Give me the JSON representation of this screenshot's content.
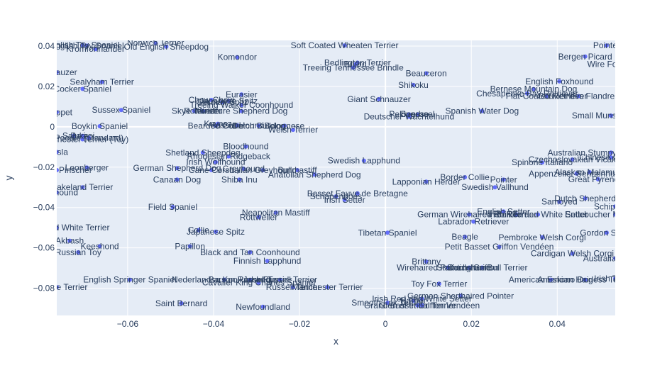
{
  "chart_data": {
    "type": "scatter",
    "title": "",
    "xlabel": "x",
    "ylabel": "y",
    "xlim": [
      -0.0765,
      0.0535
    ],
    "ylim": [
      -0.0935,
      0.0428
    ],
    "x_ticks": [
      -0.06,
      -0.04,
      -0.02,
      0,
      0.02,
      0.04
    ],
    "x_tick_labels": [
      "−0.06",
      "−0.04",
      "−0.02",
      "0",
      "0.02",
      "0.04"
    ],
    "y_ticks": [
      -0.08,
      -0.06,
      -0.04,
      -0.02,
      0,
      0.02,
      0.04
    ],
    "y_tick_labels": [
      "−0.08",
      "−0.06",
      "−0.04",
      "−0.02",
      "0",
      "0.02",
      "0.04"
    ],
    "grid": true,
    "marker_color": "#636efa",
    "plot_background": "#e5ecf6",
    "points": [
      {
        "x": -0.0705,
        "y": 0.0405,
        "label": "English Toy Spaniel"
      },
      {
        "x": -0.0695,
        "y": 0.0402,
        "label": "English Toy Spaniel"
      },
      {
        "x": -0.0535,
        "y": 0.0415,
        "label": "Norwich Terrier"
      },
      {
        "x": -0.051,
        "y": 0.0397,
        "label": "Old English Sheepdog"
      },
      {
        "x": -0.0675,
        "y": 0.0385,
        "label": "Kromfohrlander"
      },
      {
        "x": -0.0345,
        "y": 0.0345,
        "label": "Komondor"
      },
      {
        "x": -0.0095,
        "y": 0.0403,
        "label": "Soft Coated Wheaten Terrier"
      },
      {
        "x": 0.0515,
        "y": 0.0403,
        "label": "Pointer"
      },
      {
        "x": -0.0065,
        "y": 0.0318,
        "label": "Bedlington Terrier"
      },
      {
        "x": -0.007,
        "y": 0.031,
        "label": "Briard"
      },
      {
        "x": -0.0075,
        "y": 0.0293,
        "label": "Treeing Tennessee Brindle"
      },
      {
        "x": 0.0095,
        "y": 0.0265,
        "label": "Beauceron"
      },
      {
        "x": 0.0465,
        "y": 0.0348,
        "label": "Bergen Picard"
      },
      {
        "x": 0.054,
        "y": 0.031,
        "label": "Wire Fox Terrier"
      },
      {
        "x": -0.0765,
        "y": 0.027,
        "label": "Schnauzer"
      },
      {
        "x": -0.066,
        "y": 0.0222,
        "label": "Sealyham Terrier"
      },
      {
        "x": -0.0705,
        "y": 0.0188,
        "label": "Cocker Spaniel"
      },
      {
        "x": 0.0065,
        "y": 0.0207,
        "label": "Shikoku"
      },
      {
        "x": 0.0405,
        "y": 0.0225,
        "label": "English Foxhound"
      },
      {
        "x": 0.0345,
        "y": 0.0187,
        "label": "Bernese Mountain Dog"
      },
      {
        "x": 0.033,
        "y": 0.0165,
        "label": "Chesapeake Bay Retriever"
      },
      {
        "x": 0.0375,
        "y": 0.0152,
        "label": "Flat-Coated Retriever"
      },
      {
        "x": 0.045,
        "y": 0.0152,
        "label": "Bouvier des Flandres"
      },
      {
        "x": -0.0335,
        "y": 0.016,
        "label": "Eurasier"
      },
      {
        "x": -0.0405,
        "y": 0.0133,
        "label": "Chow Chow"
      },
      {
        "x": -0.0365,
        "y": 0.0128,
        "label": "Japanese Spitz"
      },
      {
        "x": -0.038,
        "y": 0.0122,
        "label": "German Spitz"
      },
      {
        "x": -0.0335,
        "y": 0.0108,
        "label": "Treeing Walker Coonhound"
      },
      {
        "x": -0.0015,
        "y": 0.0137,
        "label": "Giant Schnauzer"
      },
      {
        "x": -0.0765,
        "y": 0.0072,
        "label": "Whippet"
      },
      {
        "x": -0.0615,
        "y": 0.0083,
        "label": "Sussex Spaniel"
      },
      {
        "x": -0.0445,
        "y": 0.0078,
        "label": "Skye Terrier"
      },
      {
        "x": -0.0425,
        "y": 0.0078,
        "label": "Rottweiler"
      },
      {
        "x": -0.0335,
        "y": 0.0078,
        "label": "Miniature Shepherd Dog"
      },
      {
        "x": 0.0055,
        "y": 0.0062,
        "label": "Pekingese"
      },
      {
        "x": 0.0075,
        "y": 0.0062,
        "label": "Boerboel"
      },
      {
        "x": 0.0225,
        "y": 0.0078,
        "label": "Spanish Water Dog"
      },
      {
        "x": 0.0055,
        "y": 0.005,
        "label": "Deutscher Wachtelhund"
      },
      {
        "x": 0.0525,
        "y": 0.0055,
        "label": "Small Munsterlander"
      },
      {
        "x": -0.0665,
        "y": 0.0003,
        "label": "Boykin Spaniel"
      },
      {
        "x": -0.039,
        "y": 0.0015,
        "label": "Kuvasz"
      },
      {
        "x": -0.0395,
        "y": 0.0005,
        "label": "Bearded Collie"
      },
      {
        "x": -0.0345,
        "y": 0.0007,
        "label": "Basset Hound"
      },
      {
        "x": -0.0295,
        "y": 0.0005,
        "label": "Dutch Bulldog"
      },
      {
        "x": -0.0235,
        "y": 0.0005,
        "label": "Bolognese"
      },
      {
        "x": -0.0215,
        "y": -0.0015,
        "label": "Welsh Terrier"
      },
      {
        "x": -0.0725,
        "y": -0.0045,
        "label": "Saluki"
      },
      {
        "x": -0.0705,
        "y": -0.0045,
        "label": "Borzoi"
      },
      {
        "x": -0.069,
        "y": -0.0055,
        "label": "Poodle (Standard)"
      },
      {
        "x": -0.0705,
        "y": -0.0062,
        "label": "Manchester Terrier (Toy)"
      },
      {
        "x": -0.0765,
        "y": -0.0125,
        "label": "Vizsla"
      },
      {
        "x": -0.0325,
        "y": -0.0098,
        "label": "Bloodhound"
      },
      {
        "x": -0.0425,
        "y": -0.0128,
        "label": "Shetland Sheepdog"
      },
      {
        "x": -0.0365,
        "y": -0.0147,
        "label": "Rhodesian Ridgeback"
      },
      {
        "x": -0.0395,
        "y": -0.0175,
        "label": "Irish Wolfhound"
      },
      {
        "x": -0.005,
        "y": -0.0168,
        "label": "Swedish Lapphund"
      },
      {
        "x": 0.0525,
        "y": -0.0128,
        "label": "Australian Stumpy Tail Cattle Dog"
      },
      {
        "x": 0.0525,
        "y": -0.0152,
        "label": "Chinese Crested"
      },
      {
        "x": 0.0435,
        "y": -0.0162,
        "label": "Czechoslovakian Vlcak"
      },
      {
        "x": 0.0365,
        "y": -0.0177,
        "label": "Spinone Italiano"
      },
      {
        "x": -0.0765,
        "y": -0.0215,
        "label": "Miniature Pinscher"
      },
      {
        "x": -0.0695,
        "y": -0.0202,
        "label": "Leonberger"
      },
      {
        "x": -0.0485,
        "y": -0.0205,
        "label": "German Shepherd Dog"
      },
      {
        "x": -0.0405,
        "y": -0.0215,
        "label": "Cane Corso"
      },
      {
        "x": -0.033,
        "y": -0.0208,
        "label": "Greyhound"
      },
      {
        "x": -0.0285,
        "y": -0.0215,
        "label": "Italian Greyhound"
      },
      {
        "x": -0.0205,
        "y": -0.0215,
        "label": "Bullmastiff"
      },
      {
        "x": -0.0165,
        "y": -0.0237,
        "label": "Anatolian Shepherd Dog"
      },
      {
        "x": -0.0485,
        "y": -0.0262,
        "label": "Canaan Dog"
      },
      {
        "x": -0.034,
        "y": -0.0262,
        "label": "Shiba Inu"
      },
      {
        "x": 0.0185,
        "y": -0.025,
        "label": "Border Collie"
      },
      {
        "x": 0.0095,
        "y": -0.0272,
        "label": "Lapponian Herder"
      },
      {
        "x": 0.0275,
        "y": -0.0262,
        "label": "Pointer"
      },
      {
        "x": 0.0445,
        "y": -0.0232,
        "label": "Appenzeller Sennenhund"
      },
      {
        "x": 0.0475,
        "y": -0.0225,
        "label": "Alaskan Malamute"
      },
      {
        "x": 0.0495,
        "y": -0.026,
        "label": "Great Pyrenees"
      },
      {
        "x": 0.0255,
        "y": -0.03,
        "label": "Swedish Vallhund"
      },
      {
        "x": -0.0705,
        "y": -0.03,
        "label": "Lakeland Terrier"
      },
      {
        "x": -0.0765,
        "y": -0.0325,
        "label": "Otterhound"
      },
      {
        "x": -0.0065,
        "y": -0.033,
        "label": "Basset Fauve de Bretagne"
      },
      {
        "x": -0.0115,
        "y": -0.0345,
        "label": "Schapendoes"
      },
      {
        "x": -0.0095,
        "y": -0.0362,
        "label": "Irish Setter"
      },
      {
        "x": 0.0405,
        "y": -0.0372,
        "label": "Samoyed"
      },
      {
        "x": 0.0465,
        "y": -0.0355,
        "label": "Dutch Shepherd"
      },
      {
        "x": 0.0535,
        "y": -0.0395,
        "label": "Schipperke"
      },
      {
        "x": -0.0495,
        "y": -0.0398,
        "label": "Field Spaniel"
      },
      {
        "x": -0.0255,
        "y": -0.0425,
        "label": "Neapolitan Mastiff"
      },
      {
        "x": -0.0295,
        "y": -0.0448,
        "label": "Rottweiler"
      },
      {
        "x": 0.0275,
        "y": -0.042,
        "label": "English Setter"
      },
      {
        "x": 0.0195,
        "y": -0.0435,
        "label": "German Wirehaired Pointer"
      },
      {
        "x": 0.0305,
        "y": -0.0435,
        "label": "Bull Terrier"
      },
      {
        "x": 0.0355,
        "y": -0.0435,
        "label": "Irish Red and White Setter"
      },
      {
        "x": 0.0535,
        "y": -0.0435,
        "label": "Entlebucher Mountain Dog"
      },
      {
        "x": 0.0205,
        "y": -0.047,
        "label": "Labrador Retriever"
      },
      {
        "x": -0.0765,
        "y": -0.05,
        "label": "West Highland White Terrier"
      },
      {
        "x": -0.0435,
        "y": -0.0512,
        "label": "Collie"
      },
      {
        "x": -0.0395,
        "y": -0.052,
        "label": "Japanese Spitz"
      },
      {
        "x": 0.0005,
        "y": -0.0525,
        "label": "Tibetan Spaniel"
      },
      {
        "x": 0.0515,
        "y": -0.0525,
        "label": "Gordon Setter"
      },
      {
        "x": -0.0735,
        "y": -0.0565,
        "label": "Akbash"
      },
      {
        "x": 0.0185,
        "y": -0.0545,
        "label": "Beagle"
      },
      {
        "x": 0.0365,
        "y": -0.0548,
        "label": "Pembroke Welsh Corgi"
      },
      {
        "x": -0.0665,
        "y": -0.0592,
        "label": "Keeshond"
      },
      {
        "x": -0.0455,
        "y": -0.0592,
        "label": "Papillon"
      },
      {
        "x": 0.0265,
        "y": -0.0595,
        "label": "Petit Basset Griffon Vendéen"
      },
      {
        "x": -0.0715,
        "y": -0.0622,
        "label": "Russian Toy"
      },
      {
        "x": -0.0315,
        "y": -0.0622,
        "label": "Black and Tan Coonhound"
      },
      {
        "x": 0.0435,
        "y": -0.0628,
        "label": "Cardigan Welsh Corgi"
      },
      {
        "x": 0.0535,
        "y": -0.0652,
        "label": "Australian Terrier"
      },
      {
        "x": -0.0275,
        "y": -0.0665,
        "label": "Finnish Lapphund"
      },
      {
        "x": 0.0095,
        "y": -0.0668,
        "label": "Brittany"
      },
      {
        "x": 0.0145,
        "y": -0.0698,
        "label": "Wirehaired Pointing Griffon"
      },
      {
        "x": 0.0225,
        "y": -0.0698,
        "label": "Staffordshire Bull Terrier"
      },
      {
        "x": 0.0195,
        "y": -0.0698,
        "label": "Dachshund"
      },
      {
        "x": -0.0595,
        "y": -0.0758,
        "label": "English Springer Spaniel"
      },
      {
        "x": -0.0375,
        "y": -0.0758,
        "label": "Nederlandse Kooikerhondje"
      },
      {
        "x": -0.0315,
        "y": -0.0758,
        "label": "Parson Russell Terrier"
      },
      {
        "x": -0.0245,
        "y": -0.0758,
        "label": "Jack Russell Terrier"
      },
      {
        "x": -0.0295,
        "y": -0.0772,
        "label": "Cavalier King Charles Spaniel"
      },
      {
        "x": 0.0385,
        "y": -0.0758,
        "label": "American Eskimo Dog"
      },
      {
        "x": 0.0465,
        "y": -0.0758,
        "label": "American Hairless Terrier"
      },
      {
        "x": 0.0535,
        "y": -0.0752,
        "label": "Irish Terrier"
      },
      {
        "x": -0.0765,
        "y": -0.0795,
        "label": "Yorkshire Terrier"
      },
      {
        "x": -0.0215,
        "y": -0.0795,
        "label": "Russell Terrier"
      },
      {
        "x": -0.0135,
        "y": -0.0795,
        "label": "Manchester Terrier"
      },
      {
        "x": 0.0125,
        "y": -0.0778,
        "label": "Toy Fox Terrier"
      },
      {
        "x": 0.0175,
        "y": -0.0838,
        "label": "German Shorthaired Pointer"
      },
      {
        "x": 0.0085,
        "y": -0.0852,
        "label": "Irish Red and White Setter"
      },
      {
        "x": -0.0475,
        "y": -0.0875,
        "label": "Saint Bernard"
      },
      {
        "x": 0.0005,
        "y": -0.0872,
        "label": "Smooth Fox Terrier"
      },
      {
        "x": 0.0065,
        "y": -0.0862,
        "label": "Harrier"
      },
      {
        "x": -0.0285,
        "y": -0.0892,
        "label": "Newfoundland"
      },
      {
        "x": 0.0085,
        "y": -0.0885,
        "label": "Grand Basset Griffon Vendéen"
      },
      {
        "x": 0.0075,
        "y": -0.0885,
        "label": "Glen of Imaal Terrier"
      }
    ]
  }
}
